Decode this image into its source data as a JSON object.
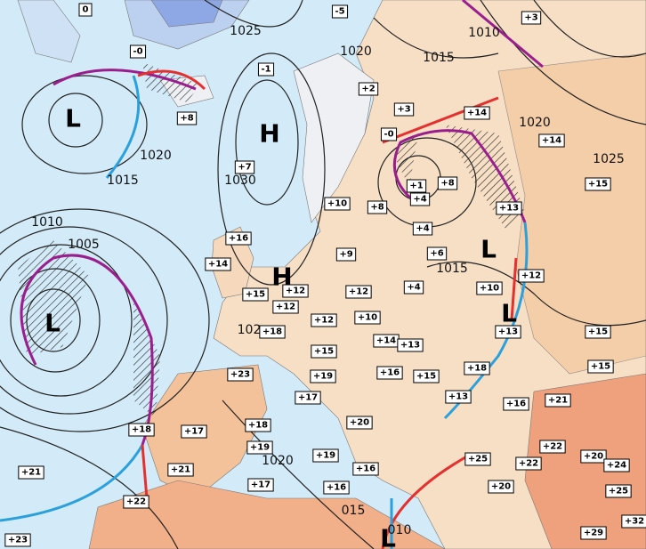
{
  "pressure_centers": [
    "L",
    "H",
    "H",
    "L",
    "L",
    "L",
    "L"
  ],
  "isobar_labels": [
    "1025",
    "1010",
    "1020",
    "1015",
    "1020",
    "1025",
    "1020",
    "1015",
    "1030",
    "1010",
    "1005",
    "1015",
    "102",
    "1020",
    "015",
    "010"
  ],
  "temperatures": [
    "0",
    "-0",
    "-1",
    "-5",
    "+3",
    "+2",
    "+3",
    "+14",
    "+8",
    "-0",
    "+14",
    "+7",
    "+1",
    "+8",
    "+4",
    "+15",
    "+10",
    "+8",
    "+13",
    "+4",
    "+16",
    "+14",
    "+9",
    "+6",
    "+12",
    "+15",
    "+12",
    "+12",
    "+4",
    "+10",
    "+12",
    "+18",
    "+12",
    "+10",
    "+13",
    "+15",
    "+15",
    "+14",
    "+13",
    "+23",
    "+19",
    "+16",
    "+15",
    "+18",
    "+15",
    "+17",
    "+13",
    "+16",
    "+21",
    "+18",
    "+17",
    "+18",
    "+20",
    "+19",
    "+19",
    "+22",
    "+20",
    "+24",
    "+21",
    "+25",
    "+22",
    "+21",
    "+16",
    "+17",
    "+16",
    "+20",
    "+22",
    "+25",
    "+32",
    "+23",
    "+29"
  ]
}
